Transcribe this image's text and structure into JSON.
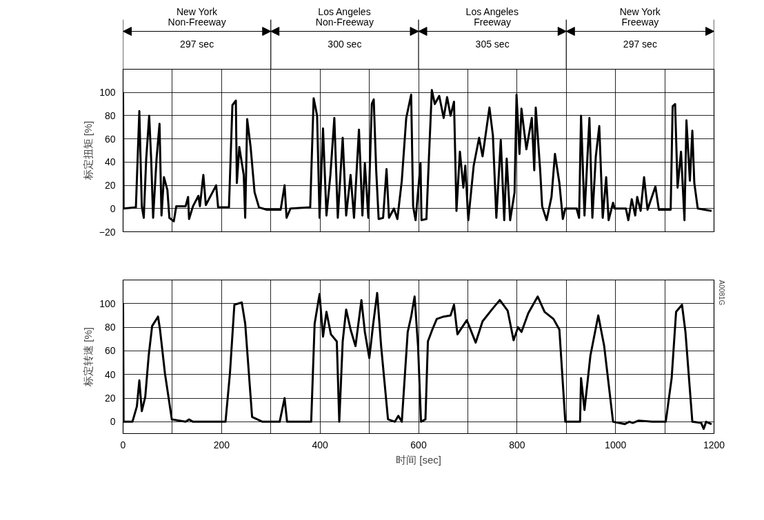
{
  "chart_data": [
    {
      "type": "line",
      "ylabel": "标定扭矩 [%]",
      "xlim": [
        0,
        1200
      ],
      "ylim": [
        -20,
        120
      ],
      "xticks": [
        0,
        {
          "value": 100,
          "label": null
        },
        200,
        {
          "value": 300,
          "label": null
        },
        400,
        {
          "value": 500,
          "label": null
        },
        600,
        {
          "value": 700,
          "label": null
        },
        800,
        {
          "value": 900,
          "label": null
        },
        1000,
        {
          "value": 1100,
          "label": null
        },
        1200
      ],
      "yticks": [
        -20,
        0,
        20,
        40,
        60,
        80,
        100,
        {
          "value": 120,
          "label": null
        }
      ],
      "tick_labels": "y",
      "grid": true,
      "annotations": [
        "New York\nNon-Freeway",
        "297 sec",
        "Los Angeles\nNon-Freeway",
        "300 sec",
        "Los Angeles\nFreeway",
        "305 sec",
        "New York\nFreeway",
        "297 sec"
      ],
      "series": [
        {
          "color": "#000000",
          "x": [
            0,
            1,
            26,
            33,
            38,
            42,
            47,
            53,
            57,
            61,
            68,
            74,
            78,
            83,
            90,
            94,
            103,
            108,
            127,
            132,
            134,
            142,
            153,
            156,
            163,
            168,
            189,
            193,
            215,
            222,
            229,
            231,
            236,
            245,
            248,
            252,
            259,
            267,
            276,
            292,
            320,
            328,
            332,
            340,
            380,
            387,
            394,
            399,
            406,
            413,
            421,
            429,
            436,
            446,
            453,
            462,
            469,
            479,
            486,
            491,
            498,
            505,
            509,
            514,
            519,
            528,
            535,
            540,
            550,
            557,
            566,
            575,
            585,
            589,
            594,
            604,
            606,
            616,
            621,
            627,
            633,
            642,
            651,
            658,
            665,
            672,
            677,
            684,
            691,
            695,
            701,
            712,
            723,
            730,
            744,
            751,
            758,
            767,
            774,
            779,
            786,
            795,
            799,
            805,
            809,
            819,
            830,
            835,
            838,
            847,
            851,
            860,
            870,
            877,
            886,
            893,
            898,
            921,
            926,
            930,
            937,
            947,
            953,
            960,
            967,
            974,
            981,
            986,
            995,
            998,
            1021,
            1026,
            1033,
            1040,
            1044,
            1051,
            1058,
            1065,
            1081,
            1088,
            1112,
            1116,
            1121,
            1126,
            1133,
            1140,
            1144,
            1151,
            1156,
            1160,
            1167,
            1195
          ],
          "values": [
            100,
            0,
            1,
            84,
            2,
            -8,
            43,
            80,
            43,
            -8,
            43,
            73,
            -6,
            27,
            16,
            -8,
            -11,
            2,
            2,
            10,
            -9,
            2,
            11,
            2,
            29,
            3,
            20,
            1,
            1,
            89,
            93,
            22,
            53,
            29,
            -8,
            77,
            53,
            14,
            1,
            -1,
            -1,
            20,
            -8,
            0,
            1,
            95,
            80,
            -8,
            69,
            -6,
            29,
            78,
            -8,
            61,
            -6,
            29,
            -8,
            68,
            -6,
            39,
            -8,
            90,
            94,
            33,
            -9,
            -8,
            34,
            -8,
            0,
            -9,
            24,
            78,
            98,
            2,
            -10,
            39,
            -10,
            -9,
            43,
            102,
            90,
            97,
            78,
            96,
            80,
            92,
            -2,
            49,
            18,
            37,
            -10,
            37,
            61,
            45,
            87,
            63,
            -8,
            59,
            -10,
            43,
            -10,
            14,
            98,
            47,
            86,
            51,
            78,
            33,
            87,
            33,
            2,
            -10,
            10,
            47,
            22,
            -9,
            0,
            0,
            -8,
            80,
            -6,
            78,
            -8,
            45,
            71,
            -8,
            27,
            -10,
            5,
            0,
            0,
            -10,
            8,
            -6,
            10,
            -2,
            27,
            -1,
            19,
            -1,
            -1,
            88,
            90,
            18,
            49,
            -10,
            76,
            24,
            67,
            22,
            0,
            -2
          ]
        }
      ]
    },
    {
      "type": "line",
      "xlabel": "时间 [sec]",
      "ylabel": "标定转速 [%]",
      "xlim": [
        0,
        1200
      ],
      "ylim": [
        -10,
        120
      ],
      "xticks": [
        0,
        {
          "value": 100,
          "label": null
        },
        200,
        {
          "value": 300,
          "label": null
        },
        400,
        {
          "value": 500,
          "label": null
        },
        600,
        {
          "value": 700,
          "label": null
        },
        800,
        {
          "value": 900,
          "label": null
        },
        1000,
        {
          "value": 1100,
          "label": null
        },
        1200
      ],
      "yticks": [
        0,
        20,
        40,
        60,
        80,
        100,
        {
          "value": 120,
          "label": null
        }
      ],
      "grid": true,
      "annotations": [
        "A0081G"
      ],
      "series": [
        {
          "color": "#000000",
          "x": [
            0,
            1,
            19,
            28,
            33,
            38,
            45,
            52,
            59,
            71,
            75,
            85,
            99,
            127,
            134,
            142,
            208,
            217,
            226,
            241,
            248,
            262,
            283,
            318,
            328,
            333,
            382,
            389,
            399,
            406,
            413,
            422,
            434,
            439,
            446,
            453,
            462,
            472,
            484,
            491,
            500,
            508,
            516,
            524,
            538,
            552,
            559,
            566,
            578,
            585,
            592,
            599,
            605,
            614,
            619,
            628,
            637,
            651,
            665,
            672,
            679,
            698,
            716,
            730,
            749,
            765,
            781,
            793,
            802,
            809,
            823,
            842,
            856,
            874,
            886,
            898,
            928,
            930,
            937,
            949,
            965,
            977,
            995,
            1019,
            1028,
            1035,
            1047,
            1074,
            1102,
            1114,
            1123,
            1135,
            1142,
            1156,
            1174,
            1179,
            1184,
            1195
          ],
          "values": [
            100,
            0,
            0,
            13,
            35,
            9,
            21,
            56,
            81,
            89,
            78,
            41,
            2,
            0,
            2,
            0,
            0,
            41,
            99,
            101,
            83,
            4,
            0,
            0,
            20,
            0,
            0,
            83,
            108,
            72,
            93,
            74,
            68,
            0,
            68,
            95,
            78,
            64,
            103,
            76,
            54,
            83,
            109,
            64,
            2,
            0,
            5,
            0,
            76,
            89,
            106,
            64,
            0,
            2,
            68,
            78,
            87,
            89,
            90,
            99,
            74,
            86,
            67,
            85,
            95,
            103,
            94,
            69,
            80,
            76,
            92,
            106,
            93,
            87,
            78,
            0,
            0,
            37,
            10,
            56,
            90,
            64,
            0,
            -2,
            0,
            -1,
            1,
            0,
            0,
            37,
            93,
            99,
            76,
            0,
            -1,
            -6,
            0,
            -2
          ]
        }
      ]
    }
  ]
}
